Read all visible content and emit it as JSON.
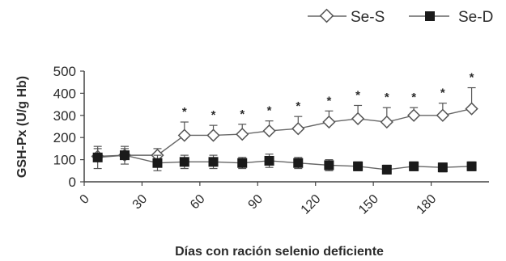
{
  "chart_data": {
    "type": "line",
    "title": "",
    "xlabel": "Días con ración selenio deficiente",
    "ylabel": "GSH-Px (U/g Hb)",
    "xlim": [
      0,
      210
    ],
    "ylim": [
      0,
      500
    ],
    "x_ticks": [
      "0",
      "30",
      "60",
      "90",
      "120",
      "150",
      "180"
    ],
    "y_ticks": [
      "0",
      "100",
      "200",
      "300",
      "400",
      "500"
    ],
    "legend_position": "top-right",
    "significance_symbol": "*",
    "series": [
      {
        "name": "Se-S",
        "marker": "open-diamond",
        "color": "#555555",
        "x": [
          7,
          21,
          38,
          52,
          67,
          82,
          96,
          111,
          127,
          142,
          157,
          171,
          186,
          201
        ],
        "y": [
          115,
          120,
          120,
          210,
          210,
          215,
          230,
          240,
          270,
          285,
          270,
          300,
          300,
          330
        ],
        "error": [
          35,
          30,
          30,
          60,
          45,
          45,
          45,
          55,
          50,
          60,
          65,
          35,
          55,
          95
        ],
        "significant": [
          false,
          false,
          false,
          true,
          true,
          true,
          true,
          true,
          true,
          true,
          true,
          true,
          true,
          true
        ]
      },
      {
        "name": "Se-D",
        "marker": "filled-square",
        "color": "#1a1a1a",
        "x": [
          7,
          21,
          38,
          52,
          67,
          82,
          96,
          111,
          127,
          142,
          157,
          171,
          186,
          201
        ],
        "y": [
          110,
          120,
          85,
          90,
          90,
          85,
          95,
          85,
          75,
          70,
          55,
          70,
          65,
          70
        ],
        "error": [
          50,
          40,
          35,
          30,
          30,
          25,
          30,
          25,
          25,
          20,
          20,
          20,
          20,
          20
        ]
      }
    ]
  }
}
